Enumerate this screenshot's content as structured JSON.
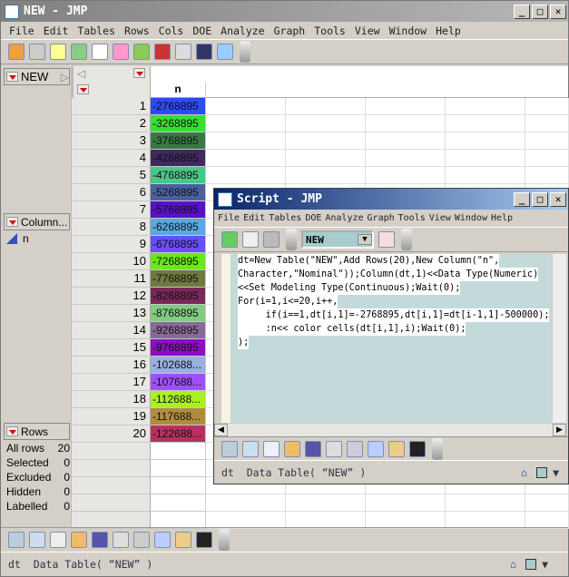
{
  "main": {
    "title": "NEW - JMP",
    "menu": [
      "File",
      "Edit",
      "Tables",
      "Rows",
      "Cols",
      "DOE",
      "Analyze",
      "Graph",
      "Tools",
      "View",
      "Window",
      "Help"
    ],
    "table_panel": "NEW",
    "columns_panel": "Column...",
    "columns": [
      "n"
    ],
    "rows_panel": "Rows",
    "row_stats": [
      {
        "label": "All rows",
        "value": "20"
      },
      {
        "label": "Selected",
        "value": "0"
      },
      {
        "label": "Excluded",
        "value": "0"
      },
      {
        "label": "Hidden",
        "value": "0"
      },
      {
        "label": "Labelled",
        "value": "0"
      }
    ],
    "column_header": "n",
    "rows": [
      {
        "n": "1",
        "v": "-2768895",
        "c": "#2b4cf0"
      },
      {
        "n": "2",
        "v": "-3268895",
        "c": "#36e032"
      },
      {
        "n": "3",
        "v": "-3768895",
        "c": "#3a7a42"
      },
      {
        "n": "4",
        "v": "-4268895",
        "c": "#3e2a5e"
      },
      {
        "n": "5",
        "v": "-4768895",
        "c": "#48c888"
      },
      {
        "n": "6",
        "v": "-5268895",
        "c": "#4c60a0"
      },
      {
        "n": "7",
        "v": "-5768895",
        "c": "#5a10c8"
      },
      {
        "n": "8",
        "v": "-6268895",
        "c": "#5aa8e0"
      },
      {
        "n": "9",
        "v": "-6768895",
        "c": "#6650f8"
      },
      {
        "n": "10",
        "v": "-7268895",
        "c": "#6ae818"
      },
      {
        "n": "11",
        "v": "-7768895",
        "c": "#6e7a40"
      },
      {
        "n": "12",
        "v": "-8268895",
        "c": "#7a2858"
      },
      {
        "n": "13",
        "v": "-8768895",
        "c": "#80cc80"
      },
      {
        "n": "14",
        "v": "-9268895",
        "c": "#886a9a"
      },
      {
        "n": "15",
        "v": "-9768895",
        "c": "#8a10c0"
      },
      {
        "n": "16",
        "v": "-102688...",
        "c": "#98b0e0"
      },
      {
        "n": "17",
        "v": "-107688...",
        "c": "#a050f8"
      },
      {
        "n": "18",
        "v": "-112688...",
        "c": "#a8f020"
      },
      {
        "n": "19",
        "v": "-117688...",
        "c": "#b08c40"
      },
      {
        "n": "20",
        "v": "-122688...",
        "c": "#b83060"
      }
    ],
    "status": "dt  Data Table( “NEW” )"
  },
  "script": {
    "title": "Script - JMP",
    "menu": [
      "File",
      "Edit",
      "Tables",
      "DOE",
      "Analyze",
      "Graph",
      "Tools",
      "View",
      "Window",
      "Help"
    ],
    "table_select": "NEW",
    "code": [
      "dt=New Table(\"NEW\",Add Rows(20),New Column(\"n\",",
      "Character,\"Nominal\"));Column(dt,1)<<Data Type(Numeric)",
      "<<Set Modeling Type(Continuous);Wait(0);",
      "For(i=1,i<=20,i++,",
      "     if(i==1,dt[i,1]=-2768895,dt[i,1]=dt[i-1,1]-500000);",
      "     :n<< color cells(dt[i,1],i);Wait(0);",
      ");"
    ],
    "status": "dt  Data Table( “NEW” )"
  }
}
